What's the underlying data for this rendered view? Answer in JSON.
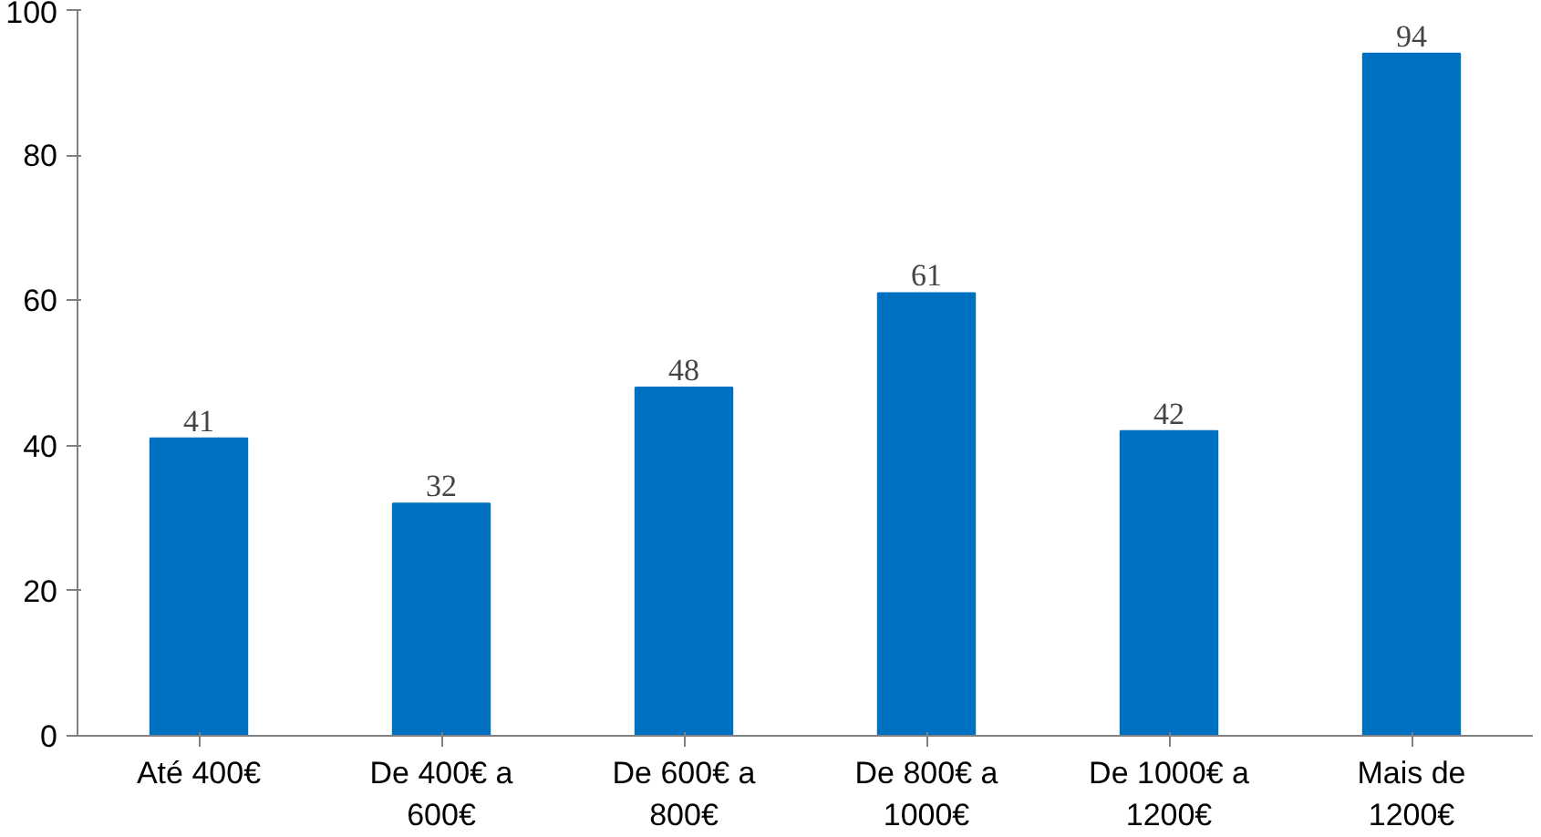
{
  "chart_data": {
    "type": "bar",
    "categories": [
      "Até 400€",
      "De 400€ a 600€",
      "De 600€ a 800€",
      "De 800€ a 1000€",
      "De 1000€ a 1200€",
      "Mais de 1200€"
    ],
    "values": [
      41,
      32,
      48,
      61,
      42,
      94
    ],
    "color": "#0070c0",
    "ylim": [
      0,
      100
    ],
    "yticks": [
      0,
      20,
      40,
      60,
      80,
      100
    ],
    "grid": false,
    "data_labels": true
  }
}
